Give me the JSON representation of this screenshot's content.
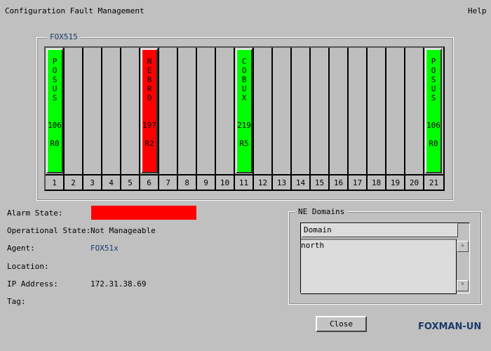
{
  "menu": {
    "left": "Configuration Fault Management",
    "help": "Help"
  },
  "rack": {
    "title": "FOX515",
    "slots": [
      {
        "n": "1",
        "name": "POSUS",
        "id": "106",
        "rev": "R0",
        "color": "#00ff00"
      },
      {
        "n": "2"
      },
      {
        "n": "3"
      },
      {
        "n": "4"
      },
      {
        "n": "5"
      },
      {
        "n": "6",
        "name": "NEBRO",
        "id": "197",
        "rev": "R2",
        "color": "#ff0000"
      },
      {
        "n": "7"
      },
      {
        "n": "8"
      },
      {
        "n": "9"
      },
      {
        "n": "10"
      },
      {
        "n": "11",
        "name": "COBUX",
        "id": "219",
        "rev": "R5",
        "color": "#00ff00"
      },
      {
        "n": "12"
      },
      {
        "n": "13"
      },
      {
        "n": "14"
      },
      {
        "n": "15"
      },
      {
        "n": "16"
      },
      {
        "n": "17"
      },
      {
        "n": "18"
      },
      {
        "n": "19"
      },
      {
        "n": "20"
      },
      {
        "n": "21",
        "name": "POSUS",
        "id": "106",
        "rev": "R0",
        "color": "#00ff00"
      }
    ]
  },
  "details": {
    "alarm_label": "Alarm State:",
    "alarm_color": "#ff0000",
    "op_label": "Operational State:",
    "op_value": "Not Manageable",
    "agent_label": "Agent:",
    "agent_value": "FOX51x",
    "location_label": "Location:",
    "ip_label": "IP Address:",
    "ip_value": "172.31.38.69",
    "tag_label": "Tag:"
  },
  "domains": {
    "title": "NE Domains",
    "header": "Domain",
    "rows": [
      "north"
    ]
  },
  "close_label": "Close",
  "brand": "FOXMAN-UN"
}
